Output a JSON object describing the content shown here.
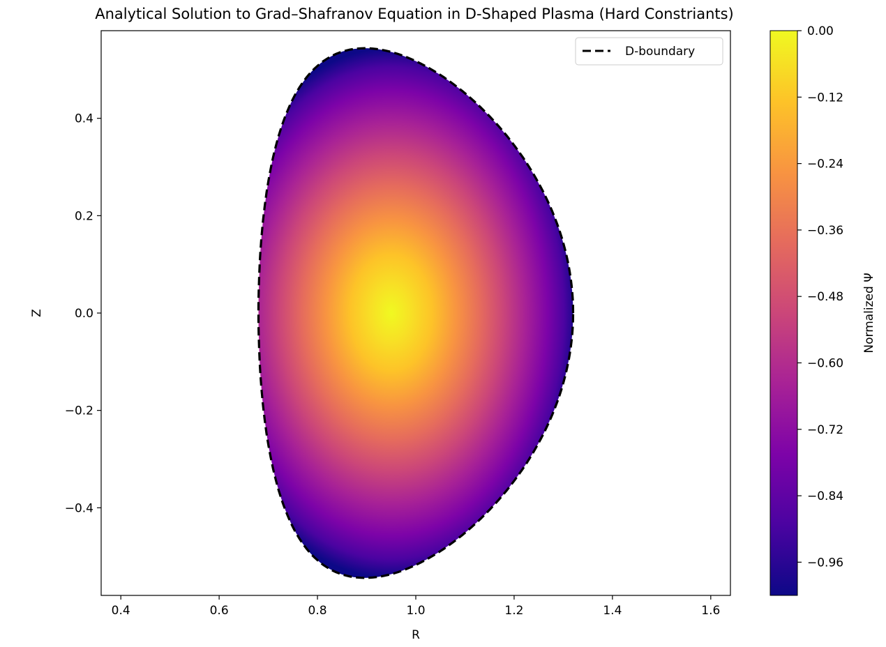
{
  "chart_data": {
    "type": "heatmap",
    "title": "Analytical Solution to Grad–Shafranov Equation in D-Shaped Plasma (Hard Constriants)",
    "xlabel": "R",
    "ylabel": "Z",
    "xlim": [
      0.36,
      1.64
    ],
    "ylim": [
      -0.58,
      0.58
    ],
    "x_ticks": [
      0.4,
      0.6,
      0.8,
      1.0,
      1.2,
      1.4,
      1.6
    ],
    "x_tick_labels": [
      "0.4",
      "0.6",
      "0.8",
      "1.0",
      "1.2",
      "1.4",
      "1.6"
    ],
    "y_ticks": [
      -0.4,
      -0.2,
      0.0,
      0.2,
      0.4
    ],
    "y_tick_labels": [
      "−0.4",
      "−0.2",
      "0.0",
      "0.2",
      "0.4"
    ],
    "grid": false,
    "colormap": "plasma",
    "colorbar": {
      "label": "Normalized Ψ",
      "range": [
        -1.02,
        0.0
      ],
      "ticks": [
        0.0,
        -0.12,
        -0.24,
        -0.36,
        -0.48,
        -0.6,
        -0.72,
        -0.84,
        -0.96
      ],
      "tick_labels": [
        "0.00",
        "−0.12",
        "−0.24",
        "−0.36",
        "−0.48",
        "−0.60",
        "−0.72",
        "−0.84",
        "−0.96"
      ]
    },
    "boundary": {
      "name": "D-boundary",
      "style": "dashed",
      "color": "#000000",
      "R0": 1.0,
      "minor_radius": 0.32,
      "elongation": 1.7,
      "triangularity": 0.33
    },
    "field_peak": {
      "R": 0.95,
      "Z": 0.0,
      "value": 0.0
    },
    "legend": {
      "entries": [
        "D-boundary"
      ],
      "placement": "upper right"
    }
  }
}
